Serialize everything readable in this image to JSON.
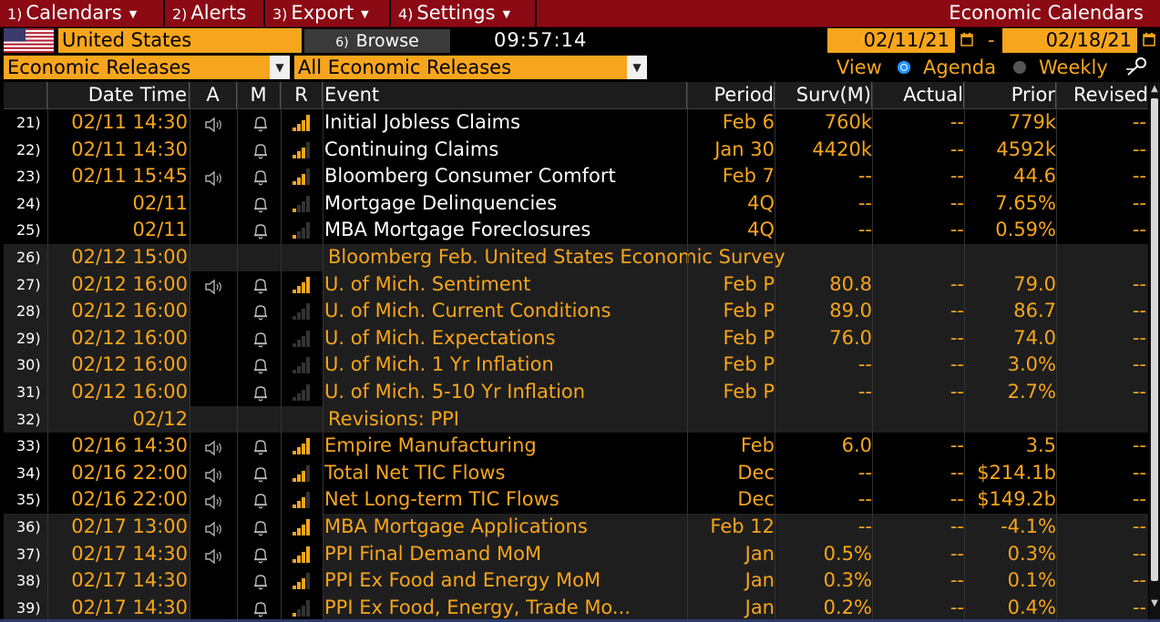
{
  "menu": {
    "items": [
      {
        "num": "1)",
        "label": "Calendars"
      },
      {
        "num": "2)",
        "label": "Alerts"
      },
      {
        "num": "3)",
        "label": "Export"
      },
      {
        "num": "4)",
        "label": "Settings"
      }
    ],
    "app_title": "Economic Calendars"
  },
  "toolbar": {
    "country": "United States",
    "browse_num": "6)",
    "browse_label": "Browse",
    "clock": "09:57:14",
    "date_from": "02/11/21",
    "date_sep": "-",
    "date_to": "02/18/21"
  },
  "filters": {
    "category": "Economic Releases",
    "subcategory": "All Economic Releases",
    "view_label": "View",
    "view_agenda": "Agenda",
    "view_weekly": "Weekly",
    "selected_view": "Agenda"
  },
  "columns": {
    "datetime": "Date Time",
    "a": "A",
    "m": "M",
    "r": "R",
    "event": "Event",
    "period": "Period",
    "surv": "Surv(M)",
    "actual": "Actual",
    "prior": "Prior",
    "revised": "Revised"
  },
  "rows": [
    {
      "num": "21)",
      "datetime": "02/11 14:30",
      "speaker": true,
      "bell": true,
      "bars": 4,
      "event": "Initial Jobless Claims",
      "period": "Feb 6",
      "surv": "760k",
      "actual": "--",
      "prior": "779k",
      "revised": "--"
    },
    {
      "num": "22)",
      "datetime": "02/11 14:30",
      "speaker": false,
      "bell": true,
      "bars": 3,
      "event": "Continuing Claims",
      "period": "Jan 30",
      "surv": "4420k",
      "actual": "--",
      "prior": "4592k",
      "revised": "--"
    },
    {
      "num": "23)",
      "datetime": "02/11 15:45",
      "speaker": true,
      "bell": true,
      "bars": 3,
      "event": "Bloomberg Consumer Comfort",
      "period": "Feb 7",
      "surv": "--",
      "actual": "--",
      "prior": "44.6",
      "revised": "--"
    },
    {
      "num": "24)",
      "datetime": "02/11",
      "speaker": false,
      "bell": true,
      "bars": 1,
      "event": "Mortgage Delinquencies",
      "period": "4Q",
      "surv": "--",
      "actual": "--",
      "prior": "7.65%",
      "revised": "--"
    },
    {
      "num": "25)",
      "datetime": "02/11",
      "speaker": false,
      "bell": true,
      "bars": 1,
      "event": "MBA Mortgage Foreclosures",
      "period": "4Q",
      "surv": "--",
      "actual": "--",
      "prior": "0.59%",
      "revised": "--"
    },
    {
      "num": "26)",
      "datetime": "02/12 15:00",
      "survey": true,
      "event": "Bloomberg Feb. United States Economic Survey"
    },
    {
      "num": "27)",
      "datetime": "02/12 16:00",
      "speaker": true,
      "bell": true,
      "bars": 4,
      "orange": true,
      "event": "U. of Mich. Sentiment",
      "period": "Feb P",
      "surv": "80.8",
      "actual": "--",
      "prior": "79.0",
      "revised": "--"
    },
    {
      "num": "28)",
      "datetime": "02/12 16:00",
      "speaker": false,
      "bell": true,
      "bars": 0,
      "orange": true,
      "event": "U. of Mich. Current Conditions",
      "period": "Feb P",
      "surv": "89.0",
      "actual": "--",
      "prior": "86.7",
      "revised": "--"
    },
    {
      "num": "29)",
      "datetime": "02/12 16:00",
      "speaker": false,
      "bell": true,
      "bars": 0,
      "orange": true,
      "event": "U. of Mich. Expectations",
      "period": "Feb P",
      "surv": "76.0",
      "actual": "--",
      "prior": "74.0",
      "revised": "--"
    },
    {
      "num": "30)",
      "datetime": "02/12 16:00",
      "speaker": false,
      "bell": true,
      "bars": 0,
      "orange": true,
      "event": "U. of Mich. 1 Yr Inflation",
      "period": "Feb P",
      "surv": "--",
      "actual": "--",
      "prior": "3.0%",
      "revised": "--"
    },
    {
      "num": "31)",
      "datetime": "02/12 16:00",
      "speaker": false,
      "bell": true,
      "bars": 0,
      "orange": true,
      "event": "U. of Mich. 5-10 Yr Inflation",
      "period": "Feb P",
      "surv": "--",
      "actual": "--",
      "prior": "2.7%",
      "revised": "--"
    },
    {
      "num": "32)",
      "datetime": "02/12",
      "survey": true,
      "event": "Revisions: PPI"
    },
    {
      "num": "33)",
      "datetime": "02/16 14:30",
      "speaker": true,
      "bell": true,
      "bars": 4,
      "orange": true,
      "event": "Empire Manufacturing",
      "period": "Feb",
      "surv": "6.0",
      "actual": "--",
      "prior": "3.5",
      "revised": "--"
    },
    {
      "num": "34)",
      "datetime": "02/16 22:00",
      "speaker": true,
      "bell": true,
      "bars": 3,
      "orange": true,
      "event": "Total Net TIC Flows",
      "period": "Dec",
      "surv": "--",
      "actual": "--",
      "prior": "$214.1b",
      "revised": "--"
    },
    {
      "num": "35)",
      "datetime": "02/16 22:00",
      "speaker": true,
      "bell": true,
      "bars": 3,
      "orange": true,
      "event": "Net Long-term TIC Flows",
      "period": "Dec",
      "surv": "--",
      "actual": "--",
      "prior": "$149.2b",
      "revised": "--"
    },
    {
      "num": "36)",
      "datetime": "02/17 13:00",
      "speaker": true,
      "bell": true,
      "bars": 4,
      "orange": true,
      "event": "MBA Mortgage Applications",
      "period": "Feb 12",
      "surv": "--",
      "actual": "--",
      "prior": "-4.1%",
      "revised": "--"
    },
    {
      "num": "37)",
      "datetime": "02/17 14:30",
      "speaker": true,
      "bell": true,
      "bars": 4,
      "orange": true,
      "event": "PPI Final Demand MoM",
      "period": "Jan",
      "surv": "0.5%",
      "actual": "--",
      "prior": "0.3%",
      "revised": "--"
    },
    {
      "num": "38)",
      "datetime": "02/17 14:30",
      "speaker": false,
      "bell": true,
      "bars": 3,
      "orange": true,
      "event": "PPI Ex Food and Energy MoM",
      "period": "Jan",
      "surv": "0.3%",
      "actual": "--",
      "prior": "0.1%",
      "revised": "--"
    },
    {
      "num": "39)",
      "datetime": "02/17 14:30",
      "speaker": false,
      "bell": true,
      "bars": 1,
      "orange": true,
      "event": "PPI Ex Food, Energy, Trade Mo...",
      "period": "Jan",
      "surv": "0.2%",
      "actual": "--",
      "prior": "0.4%",
      "revised": "--"
    }
  ],
  "colors": {
    "menu_bg": "#8c0a14",
    "accent": "#f7a51c",
    "alt_row": "#1e1e1e",
    "radio_on": "#1e90ff"
  }
}
